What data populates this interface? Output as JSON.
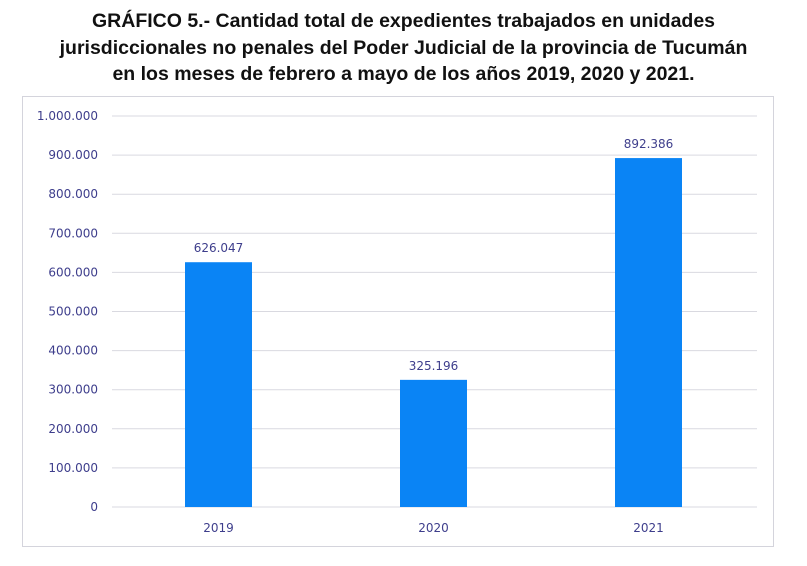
{
  "chart_data": {
    "type": "bar",
    "title": [
      "GRÁFICO 5.- Cantidad total de expedientes trabajados en unidades",
      "jurisdiccionales no penales del Poder Judicial de la provincia de Tucumán",
      "en los meses de febrero a mayo de los años 2019, 2020 y 2021."
    ],
    "xlabel": "",
    "ylabel": "",
    "categories": [
      "2019",
      "2020",
      "2021"
    ],
    "values": [
      626047,
      325196,
      892386
    ],
    "data_labels": [
      "626.047",
      "325.196",
      "892.386"
    ],
    "ylim": [
      0,
      1000000
    ],
    "yticks": [
      0,
      100000,
      200000,
      300000,
      400000,
      500000,
      600000,
      700000,
      800000,
      900000,
      1000000
    ],
    "ytick_labels": [
      "0",
      "100.000",
      "200.000",
      "300.000",
      "400.000",
      "500.000",
      "600.000",
      "700.000",
      "800.000",
      "900.000",
      "1.000.000"
    ],
    "grid": true,
    "legend": "none",
    "colors": {
      "bar": "#0a84f5",
      "text": "#3e3e8c",
      "grid": "#d9d9e0"
    }
  }
}
